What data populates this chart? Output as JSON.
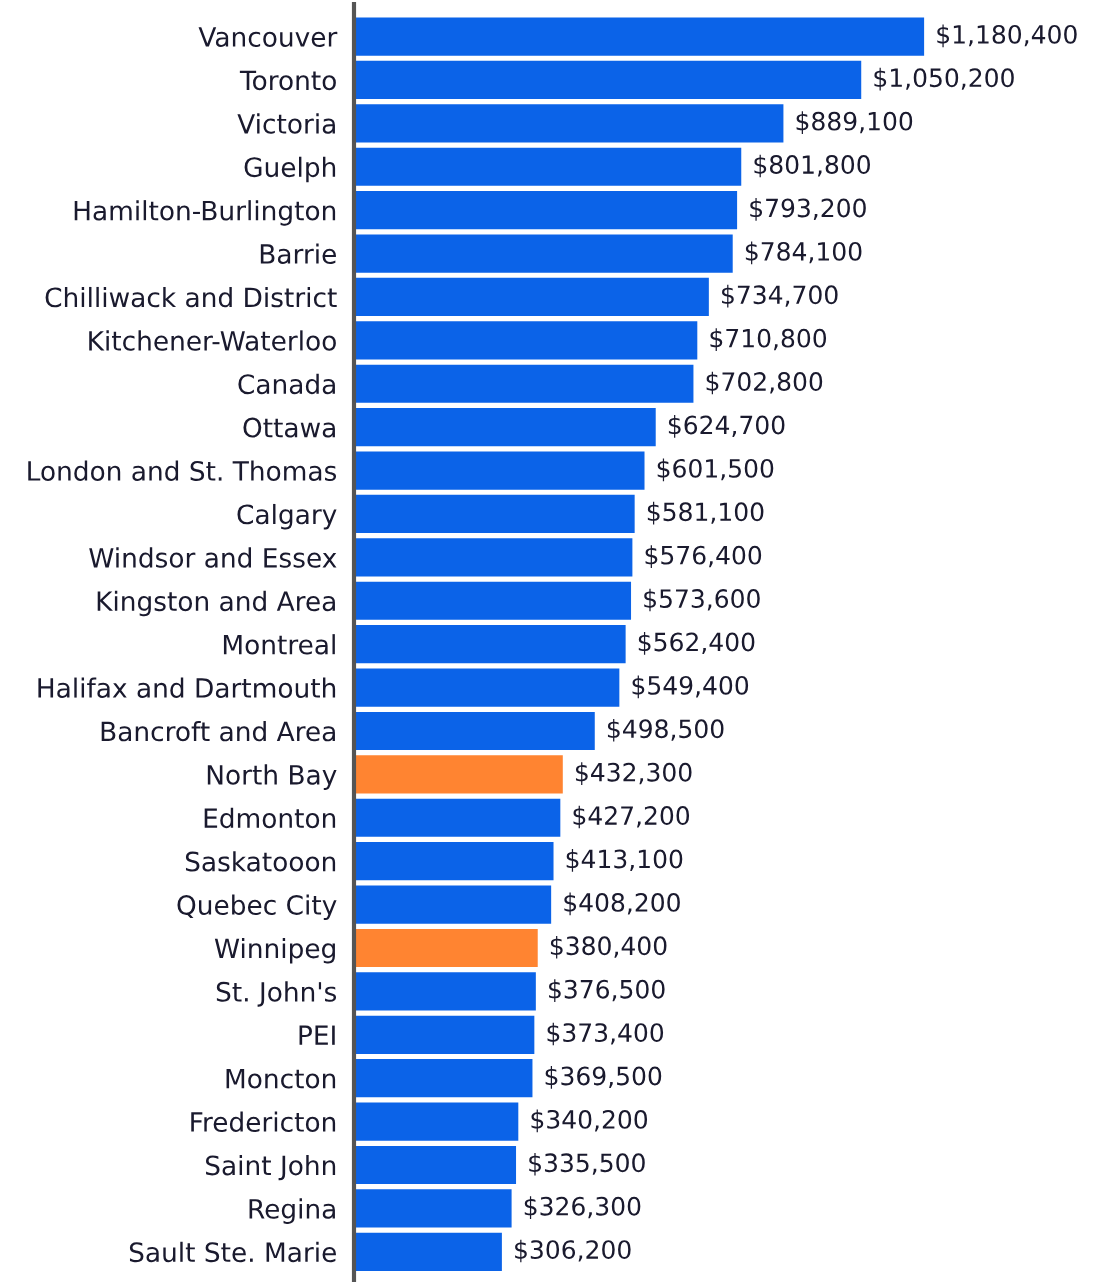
{
  "chart_data": {
    "type": "bar",
    "orientation": "horizontal",
    "data_labels": true,
    "grid": false,
    "legend": false,
    "categories": [
      "Vancouver",
      "Toronto",
      "Victoria",
      "Guelph",
      "Hamilton-Burlington",
      "Barrie",
      "Chilliwack and District",
      "Kitchener-Waterloo",
      "Canada",
      "Ottawa",
      "London and St. Thomas",
      "Calgary",
      "Windsor and Essex",
      "Kingston and Area",
      "Montreal",
      "Halifax and Dartmouth",
      "Bancroft and Area",
      "North Bay",
      "Edmonton",
      "Saskatooon",
      "Quebec City",
      "Winnipeg",
      "St. John's",
      "PEI",
      "Moncton",
      "Fredericton",
      "Saint John",
      "Regina",
      "Sault Ste. Marie"
    ],
    "values": [
      1180400,
      1050200,
      889100,
      801800,
      793200,
      784100,
      734700,
      710800,
      702800,
      624700,
      601500,
      581100,
      576400,
      573600,
      562400,
      549400,
      498500,
      432300,
      427200,
      413100,
      408200,
      380400,
      376500,
      373400,
      369500,
      340200,
      335500,
      326300,
      306200
    ],
    "value_labels": [
      "$1,180,400",
      "$1,050,200",
      "$889,100",
      "$801,800",
      "$793,200",
      "$784,100",
      "$734,700",
      "$710,800",
      "$702,800",
      "$624,700",
      "$601,500",
      "$581,100",
      "$576,400",
      "$573,600",
      "$562,400",
      "$549,400",
      "$498,500",
      "$432,300",
      "$427,200",
      "$413,100",
      "$408,200",
      "$380,400",
      "$376,500",
      "$373,400",
      "$369,500",
      "$340,200",
      "$335,500",
      "$326,300",
      "$306,200"
    ],
    "colors": [
      "#0b63e8",
      "#0b63e8",
      "#0b63e8",
      "#0b63e8",
      "#0b63e8",
      "#0b63e8",
      "#0b63e8",
      "#0b63e8",
      "#0b63e8",
      "#0b63e8",
      "#0b63e8",
      "#0b63e8",
      "#0b63e8",
      "#0b63e8",
      "#0b63e8",
      "#0b63e8",
      "#0b63e8",
      "#ff8431",
      "#0b63e8",
      "#0b63e8",
      "#0b63e8",
      "#ff8431",
      "#0b63e8",
      "#0b63e8",
      "#0b63e8",
      "#0b63e8",
      "#0b63e8",
      "#0b63e8",
      "#0b63e8"
    ]
  }
}
